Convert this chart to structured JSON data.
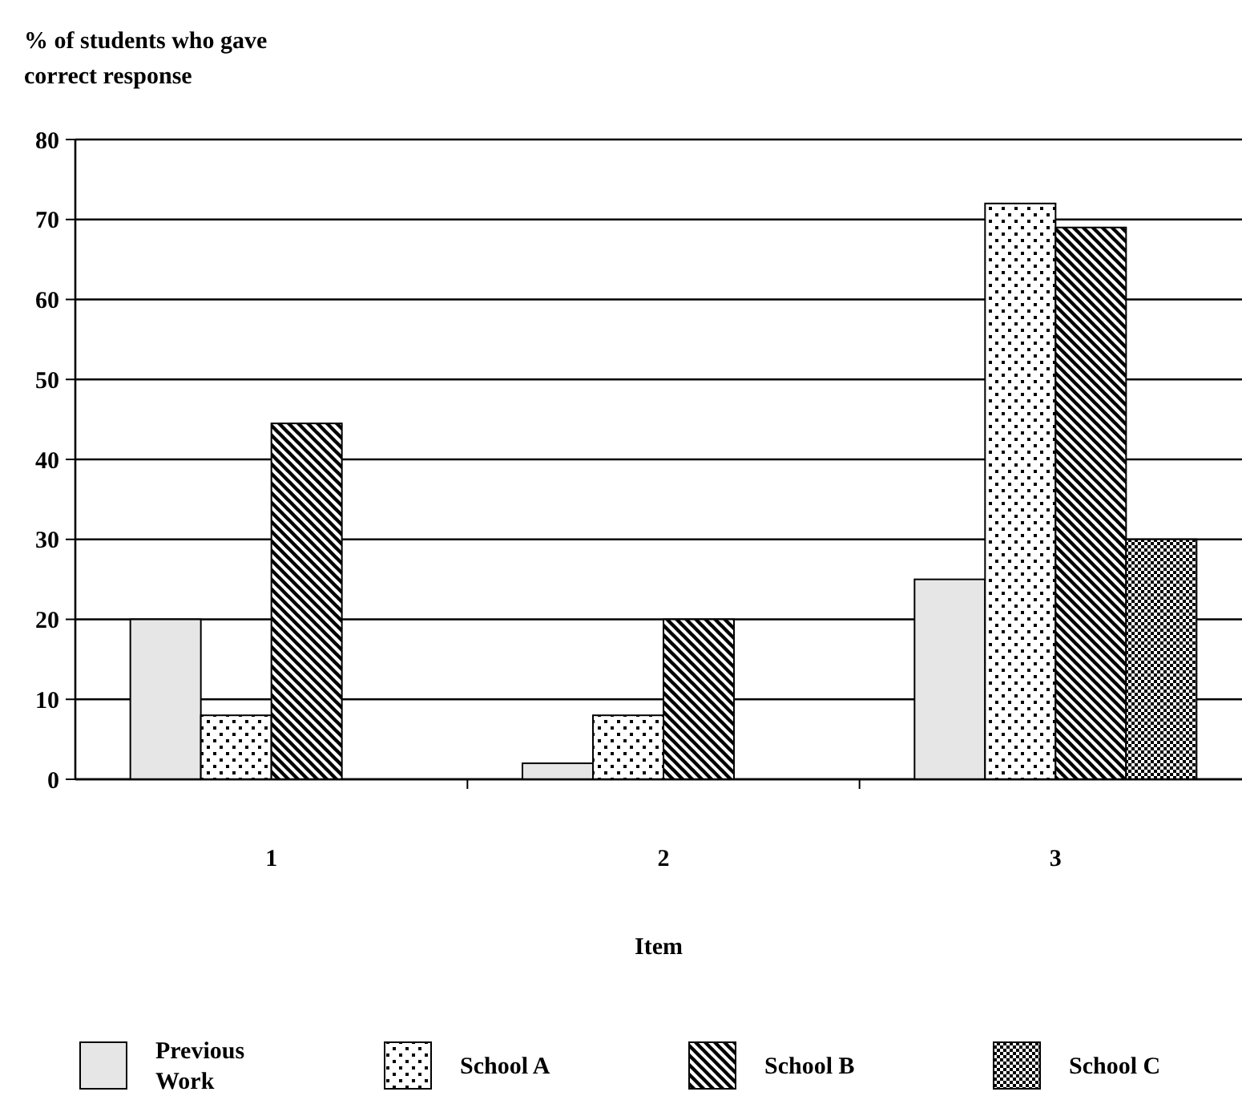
{
  "chart_data": {
    "type": "bar",
    "ylabel": "% of students who gave correct response",
    "xlabel": "Item",
    "categories": [
      "1",
      "2",
      "3"
    ],
    "series": [
      {
        "name": "Previous Work",
        "color": "#e6e6e6",
        "values": [
          20,
          2,
          25
        ]
      },
      {
        "name": "School A",
        "color": "#000000",
        "values": [
          8,
          8,
          72
        ]
      },
      {
        "name": "School B",
        "color": "#000000",
        "values": [
          44.5,
          20,
          69
        ]
      },
      {
        "name": "School C",
        "color": "#000000",
        "values": [
          null,
          null,
          30
        ]
      }
    ],
    "ylim": [
      0,
      80
    ],
    "yticks": [
      0,
      10,
      20,
      30,
      40,
      50,
      60,
      70,
      80
    ],
    "grid": "y",
    "legend": "bottom"
  }
}
